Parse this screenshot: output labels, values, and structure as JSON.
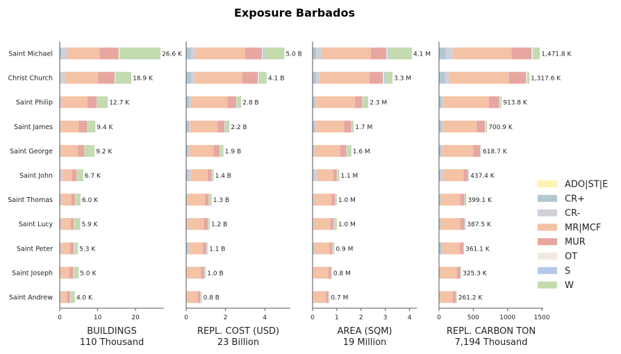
{
  "chart_data": {
    "type": "bar",
    "orientation": "horizontal-stacked",
    "title": "Exposure Barbados",
    "categories": [
      "Saint Michael",
      "Christ Church",
      "Saint Philip",
      "Saint James",
      "Saint George",
      "Saint John",
      "Saint Thomas",
      "Saint Lucy",
      "Saint Peter",
      "Saint Joseph",
      "Saint Andrew"
    ],
    "legend": {
      "placement": "right",
      "entries": [
        {
          "name": "ADO|ST|E",
          "color": "#fff2b3"
        },
        {
          "name": "CR+",
          "color": "#b3c7d3"
        },
        {
          "name": "CR-",
          "color": "#d0d0d8"
        },
        {
          "name": "MR|MCF",
          "color": "#f4c2a5"
        },
        {
          "name": "MUR",
          "color": "#e8a6a1"
        },
        {
          "name": "OT",
          "color": "#f3e9df"
        },
        {
          "name": "S",
          "color": "#b5c8e8"
        },
        {
          "name": "W",
          "color": "#c4dbb0"
        }
      ]
    },
    "panels": [
      {
        "xlabel": "BUILDINGS",
        "xsublabel": "110 Thousand",
        "xlim": [
          0,
          27.5
        ],
        "xticks": [
          0,
          10,
          20
        ],
        "tick_labels": [
          "0",
          "10",
          "20"
        ],
        "totals": [
          "26.6 K",
          "18.9 K",
          "12.7 K",
          "9.4 K",
          "9.2 K",
          "6.7 K",
          "6.0 K",
          "5.9 K",
          "5.3 K",
          "5.0 K",
          "4.0 K"
        ],
        "series": {
          "CR+": [
            0.4,
            0.1,
            0.1,
            0.1,
            0.1,
            0.1,
            0.1,
            0.1,
            0.1,
            0.0,
            0.1
          ],
          "CR-": [
            1.8,
            1.4,
            0.5,
            0.2,
            0.2,
            0.6,
            0.3,
            0.2,
            0.2,
            0.2,
            0.2
          ],
          "MR|MCF": [
            8.3,
            8.6,
            6.7,
            4.7,
            4.5,
            2.5,
            2.6,
            2.6,
            2.4,
            2.3,
            1.6
          ],
          "MUR": [
            5.0,
            4.4,
            2.5,
            2.3,
            1.7,
            1.3,
            1.1,
            0.8,
            1.0,
            1.1,
            0.9
          ],
          "OT": [
            0.3,
            0.2,
            0.1,
            0.1,
            0.1,
            0.1,
            0.1,
            0.1,
            0.1,
            0.1,
            0.1
          ],
          "S": [
            0.1,
            0.0,
            0.0,
            0.0,
            0.0,
            0.0,
            0.0,
            0.0,
            0.0,
            0.0,
            0.0
          ],
          "W": [
            10.7,
            4.2,
            2.8,
            2.0,
            2.6,
            1.6,
            1.3,
            1.6,
            1.0,
            1.3,
            1.1
          ]
        }
      },
      {
        "xlabel": "REPL. COST (USD)",
        "xsublabel": "23 Billion",
        "xlim": [
          0,
          5.3
        ],
        "xticks": [
          0,
          2,
          4
        ],
        "tick_labels": [
          "0",
          "2",
          "4"
        ],
        "totals": [
          "5.0 B",
          "4.1 B",
          "2.8 B",
          "2.2 B",
          "1.9 B",
          "1.4 B",
          "1.3 B",
          "1.2 B",
          "1.1 B",
          "1.0 B",
          "0.8 B"
        ],
        "series": {
          "CR+": [
            0.25,
            0.25,
            0.15,
            0.15,
            0.1,
            0.1,
            0.05,
            0.05,
            0.1,
            0.02,
            0.02
          ],
          "CR-": [
            0.25,
            0.2,
            0.1,
            0.05,
            0.05,
            0.15,
            0.05,
            0.05,
            0.05,
            0.03,
            0.03
          ],
          "MR|MCF": [
            2.5,
            2.4,
            1.85,
            1.4,
            1.25,
            0.85,
            0.85,
            0.8,
            0.7,
            0.7,
            0.55
          ],
          "MUR": [
            0.85,
            0.8,
            0.45,
            0.35,
            0.3,
            0.2,
            0.2,
            0.2,
            0.18,
            0.17,
            0.12
          ],
          "OT": [
            0.05,
            0.05,
            0.02,
            0.02,
            0.02,
            0.02,
            0.02,
            0.02,
            0.02,
            0.02,
            0.02
          ],
          "S": [
            0.1,
            0.05,
            0.01,
            0.01,
            0.01,
            0.01,
            0.01,
            0.01,
            0.01,
            0.01,
            0.01
          ],
          "W": [
            1.0,
            0.35,
            0.22,
            0.22,
            0.17,
            0.07,
            0.12,
            0.07,
            0.04,
            0.05,
            0.05
          ]
        }
      },
      {
        "xlabel": "AREA (SQM)",
        "xsublabel": "19 Million",
        "xlim": [
          0,
          4.3
        ],
        "xticks": [
          0,
          1,
          2,
          3,
          4
        ],
        "tick_labels": [
          "0",
          "1",
          "2",
          "3",
          "4"
        ],
        "totals": [
          "4.1 M",
          "3.3 M",
          "2.3 M",
          "1.7 M",
          "1.6 M",
          "1.1 M",
          "1.0 M",
          "1.0 M",
          "0.9 M",
          "0.8 M",
          "0.7 M"
        ],
        "series": {
          "CR+": [
            0.15,
            0.15,
            0.1,
            0.1,
            0.05,
            0.05,
            0.03,
            0.03,
            0.05,
            0.02,
            0.02
          ],
          "CR-": [
            0.25,
            0.15,
            0.05,
            0.05,
            0.05,
            0.15,
            0.05,
            0.05,
            0.05,
            0.03,
            0.03
          ],
          "MR|MCF": [
            2.0,
            2.05,
            1.6,
            1.15,
            1.05,
            0.65,
            0.7,
            0.65,
            0.6,
            0.6,
            0.5
          ],
          "MUR": [
            0.65,
            0.55,
            0.3,
            0.3,
            0.25,
            0.15,
            0.15,
            0.15,
            0.12,
            0.12,
            0.1
          ],
          "OT": [
            0.05,
            0.05,
            0.02,
            0.02,
            0.02,
            0.02,
            0.02,
            0.02,
            0.02,
            0.02,
            0.02
          ],
          "S": [
            0.05,
            0.05,
            0.01,
            0.01,
            0.01,
            0.01,
            0.01,
            0.01,
            0.01,
            0.01,
            0.01
          ],
          "W": [
            0.95,
            0.3,
            0.22,
            0.07,
            0.17,
            0.07,
            0.04,
            0.09,
            0.05,
            0.0,
            0.02
          ]
        }
      },
      {
        "xlabel": "REPL. CARBON TON",
        "xsublabel": "7,194 Thousand",
        "xlim": [
          0,
          1520
        ],
        "xticks": [
          0,
          500,
          1000,
          1500
        ],
        "tick_labels": [
          "0",
          "500",
          "1000",
          "1500"
        ],
        "totals": [
          "1,471.8 K",
          "1,317.6 K",
          "913.8 K",
          "700.9 K",
          "618.7 K",
          "437.4 K",
          "399.1 K",
          "387.5 K",
          "361.1 K",
          "325.3 K",
          "261.2 K"
        ],
        "series": {
          "CR+": [
            100,
            90,
            40,
            40,
            30,
            20,
            15,
            15,
            40,
            10,
            10
          ],
          "CR-": [
            110,
            60,
            20,
            20,
            20,
            40,
            15,
            15,
            15,
            10,
            10
          ],
          "MR|MCF": [
            850,
            870,
            670,
            490,
            450,
            300,
            280,
            280,
            250,
            240,
            180
          ],
          "MUR": [
            290,
            250,
            150,
            120,
            100,
            60,
            60,
            60,
            50,
            50,
            50
          ],
          "OT": [
            20,
            15,
            10,
            10,
            10,
            5,
            5,
            5,
            5,
            5,
            5
          ],
          "S": [
            10,
            10,
            5,
            5,
            5,
            5,
            5,
            5,
            5,
            5,
            3
          ],
          "W": [
            92,
            23,
            19,
            16,
            4,
            7,
            19,
            8,
            1,
            5,
            3
          ]
        }
      }
    ]
  }
}
